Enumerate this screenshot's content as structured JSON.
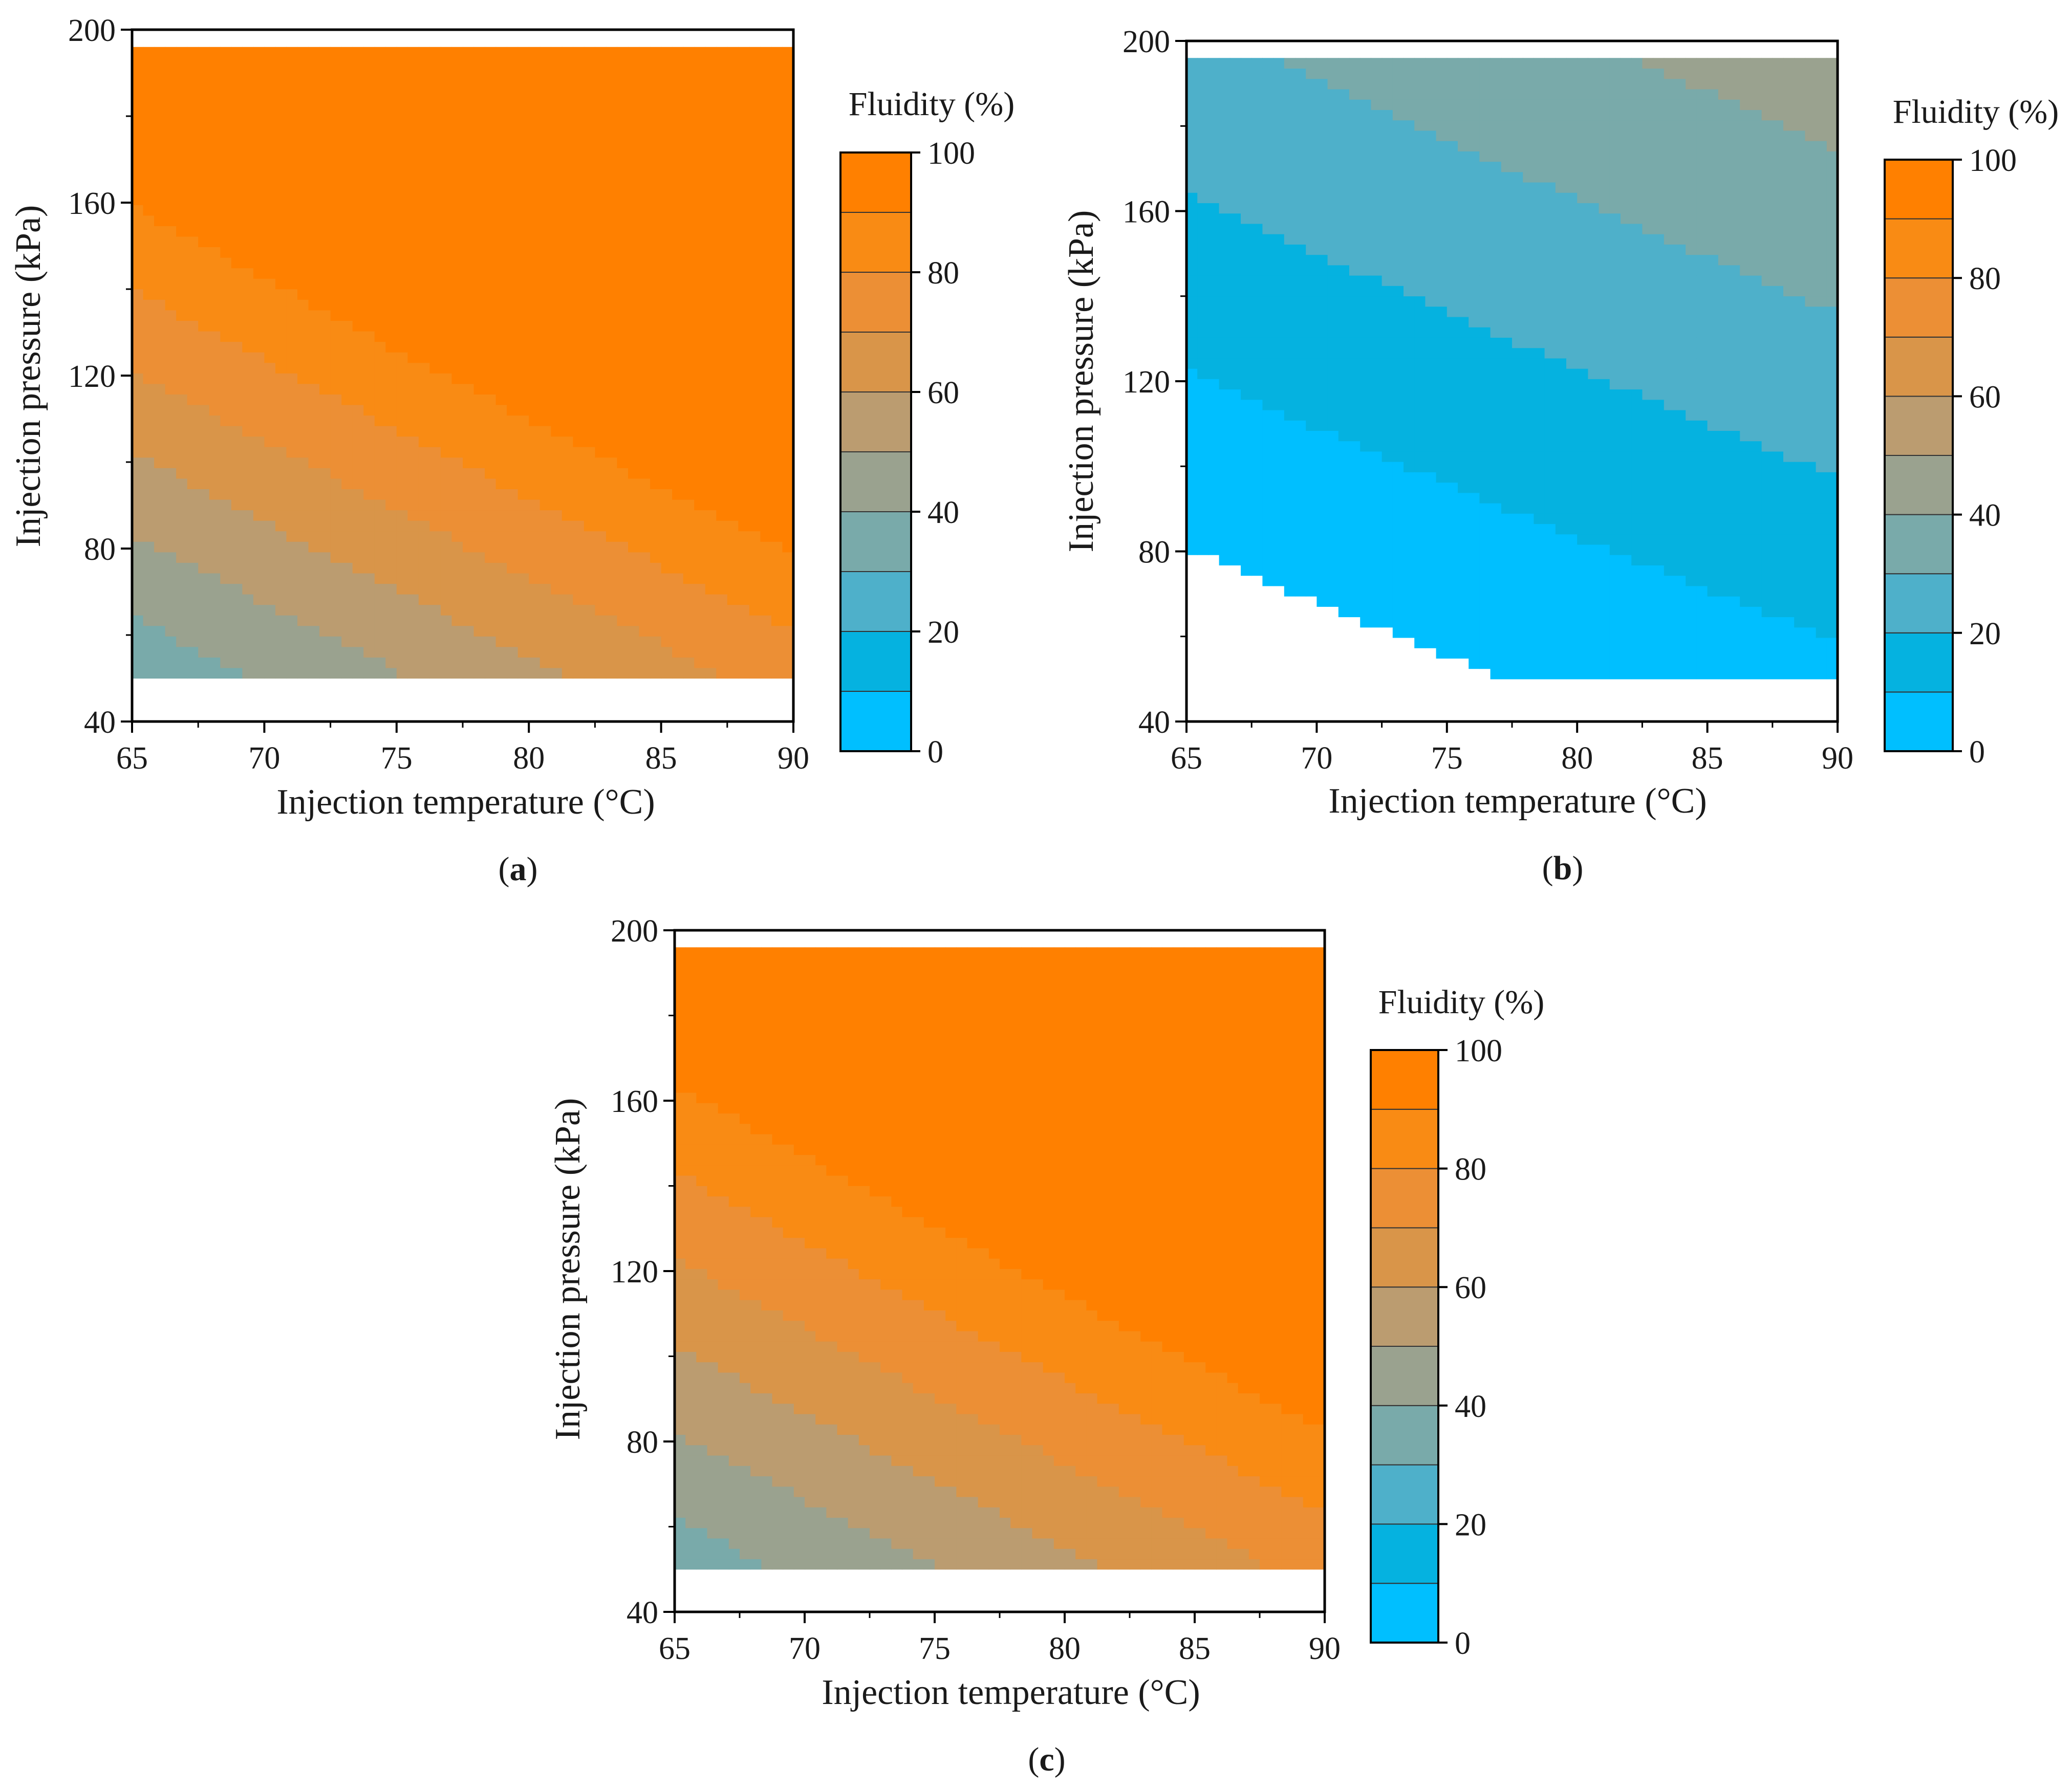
{
  "figure": {
    "panels": [
      {
        "id": "a",
        "label_open": "(",
        "label_letter": "a",
        "label_close": ")"
      },
      {
        "id": "b",
        "label_open": "(",
        "label_letter": "b",
        "label_close": ")"
      },
      {
        "id": "c",
        "label_open": "(",
        "label_letter": "c",
        "label_close": ")"
      }
    ]
  },
  "chart_data": [
    {
      "type": "contour",
      "panel": "a",
      "xlabel": "Injection temperature (°C)",
      "ylabel": "Injection pressure (kPa)",
      "xlim": [
        65,
        90
      ],
      "ylim": [
        40,
        200
      ],
      "xticks": [
        65,
        70,
        75,
        80,
        85,
        90
      ],
      "yticks": [
        40,
        80,
        120,
        160,
        200
      ],
      "data_region": {
        "x": [
          65,
          90
        ],
        "y": [
          50,
          196
        ]
      },
      "colorbar": {
        "title": "Fluidity (%)",
        "range": [
          0,
          100
        ],
        "levels": [
          0,
          10,
          20,
          30,
          40,
          50,
          60,
          70,
          80,
          90,
          100
        ],
        "tick_labels": [
          0,
          20,
          40,
          60,
          80,
          100
        ]
      },
      "colors": [
        "#00bfff",
        "#05b2e0",
        "#4eb0ca",
        "#79aaaa",
        "#9aa28f",
        "#bb9c70",
        "#d99549",
        "#ec8f35",
        "#f98b14",
        "#ff8000"
      ],
      "field_model": {
        "base": -98.0,
        "coef_x": 1.6,
        "coef_y": 0.45,
        "coef_xy": 0.0012
      }
    },
    {
      "type": "contour",
      "panel": "b",
      "xlabel": "Injection temperature (°C)",
      "ylabel": "Injection pressure (kPa)",
      "xlim": [
        65,
        90
      ],
      "ylim": [
        40,
        200
      ],
      "xticks": [
        65,
        70,
        75,
        80,
        85,
        90
      ],
      "yticks": [
        40,
        80,
        120,
        160,
        200
      ],
      "data_region": {
        "x": [
          65,
          90
        ],
        "y": [
          50,
          196
        ]
      },
      "colorbar": {
        "title": "Fluidity (%)",
        "range": [
          0,
          100
        ],
        "levels": [
          0,
          10,
          20,
          30,
          40,
          50,
          60,
          70,
          80,
          90,
          100
        ],
        "tick_labels": [
          0,
          20,
          40,
          60,
          80,
          100
        ]
      },
      "colors": [
        "#00bfff",
        "#05b2e0",
        "#4eb0ca",
        "#79aaaa",
        "#9aa28f",
        "#bb9c70",
        "#d99549",
        "#ec8f35",
        "#f98b14",
        "#ff8000"
      ],
      "field_model": {
        "base": -55.0,
        "coef_x": 0.55,
        "coef_y": 0.18,
        "coef_xy": 0.0009
      }
    },
    {
      "type": "contour",
      "panel": "c",
      "xlabel": "Injection temperature (°C)",
      "ylabel": "Injection pressure (kPa)",
      "xlim": [
        65,
        90
      ],
      "ylim": [
        40,
        200
      ],
      "xticks": [
        65,
        70,
        75,
        80,
        85,
        90
      ],
      "yticks": [
        40,
        80,
        120,
        160,
        200
      ],
      "data_region": {
        "x": [
          65,
          90
        ],
        "y": [
          50,
          196
        ]
      },
      "colorbar": {
        "title": "Fluidity (%)",
        "range": [
          0,
          100
        ],
        "levels": [
          0,
          10,
          20,
          30,
          40,
          50,
          60,
          70,
          80,
          90,
          100
        ],
        "tick_labels": [
          0,
          20,
          40,
          60,
          80,
          100
        ]
      },
      "colors": [
        "#00bfff",
        "#05b2e0",
        "#4eb0ca",
        "#79aaaa",
        "#9aa28f",
        "#bb9c70",
        "#d99549",
        "#ec8f35",
        "#f98b14",
        "#ff8000"
      ],
      "field_model": {
        "base": -88.0,
        "coef_x": 1.5,
        "coef_y": 0.42,
        "coef_xy": 0.0011
      }
    }
  ]
}
